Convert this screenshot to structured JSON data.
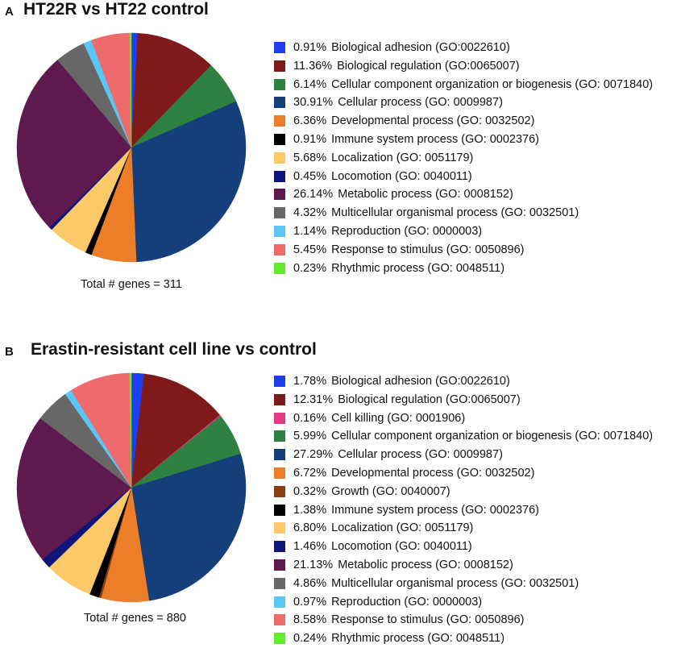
{
  "chart_data": [
    {
      "type": "pie",
      "panel_label": "A",
      "title": "HT22R vs HT22 control",
      "total_text": "Total # genes = 311",
      "slices": [
        {
          "pct_text": "0.91%",
          "label": "Biological adhesion (GO:0022610)",
          "value": 0.91,
          "color": "#1f3ef0"
        },
        {
          "pct_text": "11.36%",
          "label": "Biological regulation (GO:0065007)",
          "value": 11.36,
          "color": "#7f1a1a"
        },
        {
          "pct_text": "6.14%",
          "label": "Cellular component organization or biogenesis (GO: 0071840)",
          "value": 6.14,
          "color": "#2e8140"
        },
        {
          "pct_text": "30.91%",
          "label": "Cellular process (GO: 0009987)",
          "value": 30.91,
          "color": "#153f7a"
        },
        {
          "pct_text": "6.36%",
          "label": "Developmental process (GO: 0032502)",
          "value": 6.36,
          "color": "#ec7e2a"
        },
        {
          "pct_text": "0.91%",
          "label": "Immune system process (GO: 0002376)",
          "value": 0.91,
          "color": "#000000"
        },
        {
          "pct_text": "5.68%",
          "label": "Localization (GO: 0051179)",
          "value": 5.68,
          "color": "#fbc968"
        },
        {
          "pct_text": "0.45%",
          "label": "Locomotion (GO: 0040011)",
          "value": 0.45,
          "color": "#10157c"
        },
        {
          "pct_text": "26.14%",
          "label": "Metabolic process (GO: 0008152)",
          "value": 26.14,
          "color": "#5e1a4e"
        },
        {
          "pct_text": "4.32%",
          "label": "Multicellular organismal process (GO: 0032501)",
          "value": 4.32,
          "color": "#676767"
        },
        {
          "pct_text": "1.14%",
          "label": "Reproduction (GO: 0000003)",
          "value": 1.14,
          "color": "#5ac6f5"
        },
        {
          "pct_text": "5.45%",
          "label": "Response to stimulus (GO: 0050896)",
          "value": 5.45,
          "color": "#ee6b6c"
        },
        {
          "pct_text": "0.23%",
          "label": "Rhythmic process (GO: 0048511)",
          "value": 0.23,
          "color": "#63ec2e"
        }
      ]
    },
    {
      "type": "pie",
      "panel_label": "B",
      "title": "Erastin-resistant cell line vs control",
      "total_text": "Total # genes = 880",
      "slices": [
        {
          "pct_text": "1.78%",
          "label": "Biological adhesion (GO:0022610)",
          "value": 1.78,
          "color": "#1f3ef0"
        },
        {
          "pct_text": "12.31%",
          "label": "Biological regulation (GO:0065007)",
          "value": 12.31,
          "color": "#7f1a1a"
        },
        {
          "pct_text": "0.16%",
          "label": "Cell killing (GO: 0001906)",
          "value": 0.16,
          "color": "#e73a86"
        },
        {
          "pct_text": "5.99%",
          "label": "Cellular component organization or biogenesis (GO: 0071840)",
          "value": 5.99,
          "color": "#2e8140"
        },
        {
          "pct_text": "27.29%",
          "label": "Cellular process (GO: 0009987)",
          "value": 27.29,
          "color": "#153f7a"
        },
        {
          "pct_text": "6.72%",
          "label": "Developmental process (GO: 0032502)",
          "value": 6.72,
          "color": "#ec7e2a"
        },
        {
          "pct_text": "0.32%",
          "label": "Growth (GO: 0040007)",
          "value": 0.32,
          "color": "#8a3e12"
        },
        {
          "pct_text": "1.38%",
          "label": "Immune system process (GO: 0002376)",
          "value": 1.38,
          "color": "#000000"
        },
        {
          "pct_text": "6.80%",
          "label": "Localization (GO: 0051179)",
          "value": 6.8,
          "color": "#fbc968"
        },
        {
          "pct_text": "1.46%",
          "label": "Locomotion (GO: 0040011)",
          "value": 1.46,
          "color": "#10157c"
        },
        {
          "pct_text": "21.13%",
          "label": "Metabolic process (GO: 0008152)",
          "value": 21.13,
          "color": "#5e1a4e"
        },
        {
          "pct_text": "4.86%",
          "label": "Multicellular organismal process (GO: 0032501)",
          "value": 4.86,
          "color": "#676767"
        },
        {
          "pct_text": "0.97%",
          "label": "Reproduction (GO: 0000003)",
          "value": 0.97,
          "color": "#5ac6f5"
        },
        {
          "pct_text": "8.58%",
          "label": "Response to stimulus (GO: 0050896)",
          "value": 8.58,
          "color": "#ee6b6c"
        },
        {
          "pct_text": "0.24%",
          "label": "Rhythmic process (GO: 0048511)",
          "value": 0.24,
          "color": "#63ec2e"
        }
      ]
    }
  ]
}
